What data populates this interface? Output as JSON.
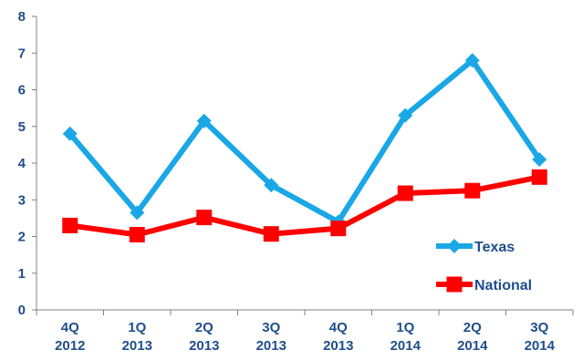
{
  "chart_data": {
    "type": "line",
    "title": "",
    "xlabel": "",
    "ylabel": "",
    "ylim": [
      0,
      8
    ],
    "yticks": [
      0,
      1,
      2,
      3,
      4,
      5,
      6,
      7,
      8
    ],
    "categories": [
      [
        "4Q",
        "2012"
      ],
      [
        "1Q",
        "2013"
      ],
      [
        "2Q",
        "2013"
      ],
      [
        "3Q",
        "2013"
      ],
      [
        "4Q",
        "2013"
      ],
      [
        "1Q",
        "2014"
      ],
      [
        "2Q",
        "2014"
      ],
      [
        "3Q",
        "2014"
      ]
    ],
    "grid": false,
    "legend_position": "bottom-right",
    "series": [
      {
        "name": "Texas",
        "color": "#1aa7e6",
        "marker": "diamond",
        "values": [
          4.8,
          2.65,
          5.15,
          3.4,
          2.4,
          5.3,
          6.8,
          4.1
        ]
      },
      {
        "name": "National",
        "color": "#ff0000",
        "marker": "square",
        "values": [
          2.3,
          2.05,
          2.52,
          2.07,
          2.22,
          3.18,
          3.25,
          3.62
        ]
      }
    ]
  }
}
